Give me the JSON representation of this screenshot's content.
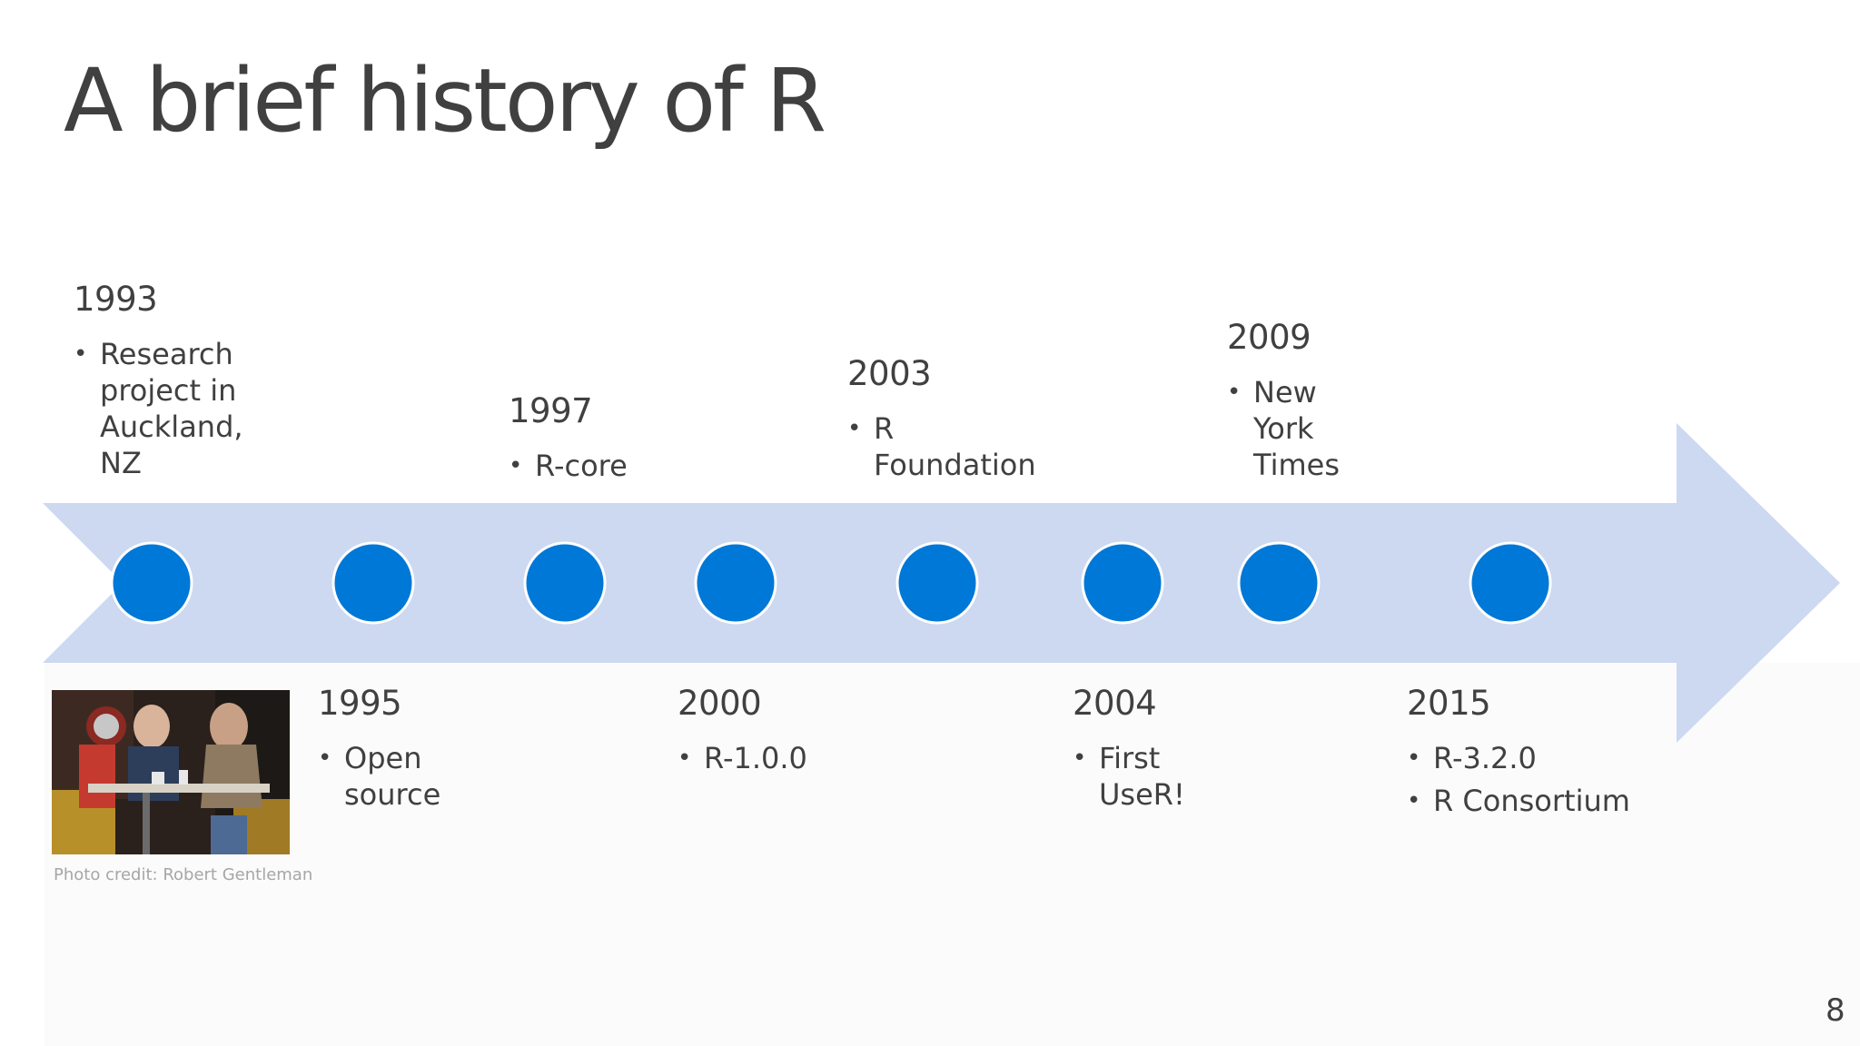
{
  "slide": {
    "title": "A brief history of R",
    "page_number": "8",
    "photo_credit": "Photo credit: Robert Gentleman"
  },
  "colors": {
    "arrow": "#cdd8f1",
    "node": "#0078d7",
    "node_border": "#ffffff",
    "text": "#404040",
    "credit": "#a6a6a6"
  },
  "timeline": {
    "events_above": [
      {
        "year": "1993",
        "bullets": [
          "Research project in Auckland, NZ"
        ]
      },
      {
        "year": "1997",
        "bullets": [
          "R-core"
        ]
      },
      {
        "year": "2003",
        "bullets": [
          "R Foundation"
        ]
      },
      {
        "year": "2009",
        "bullets": [
          "New York Times"
        ]
      }
    ],
    "events_below": [
      {
        "year": "1995",
        "bullets": [
          "Open source"
        ]
      },
      {
        "year": "2000",
        "bullets": [
          "R-1.0.0"
        ]
      },
      {
        "year": "2004",
        "bullets": [
          "First UseR!"
        ]
      },
      {
        "year": "2015",
        "bullets": [
          "R-3.2.0",
          "R Consortium"
        ]
      }
    ],
    "node_count": 8
  }
}
